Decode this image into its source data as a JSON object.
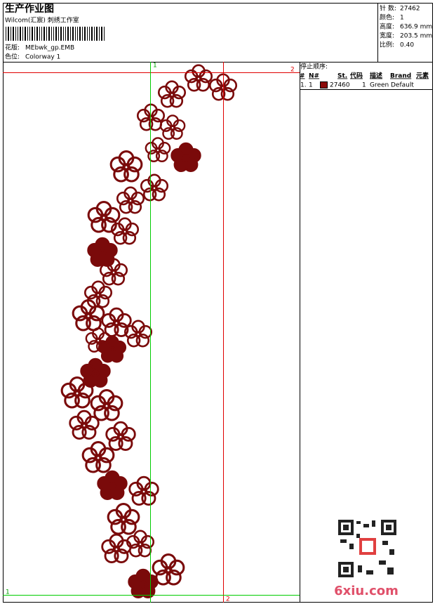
{
  "header": {
    "title": "生产作业图",
    "studio": "Wilcom(汇宸) 刺绣工作室",
    "design_label": "花版:",
    "design": "MEbwk_gp.EMB",
    "colorway_label": "色位:",
    "colorway": "Colorway 1"
  },
  "stats": [
    {
      "label": "针 数:",
      "value": "27462"
    },
    {
      "label": "颜色:",
      "value": "1"
    },
    {
      "label": "高度:",
      "value": "636.9 mm"
    },
    {
      "label": "宽度:",
      "value": "203.5 mm"
    },
    {
      "label": "比例:",
      "value": "0.40"
    }
  ],
  "stop_sequence": {
    "title": "停止顺序:",
    "columns": [
      "#",
      "N#",
      "St.",
      "代码",
      "描述",
      "Brand",
      "元素"
    ],
    "rows": [
      [
        "1.",
        "1",
        "27460",
        "1",
        "Green",
        "Default"
      ]
    ]
  },
  "guides": [
    "1",
    "2",
    "2",
    "1"
  ],
  "watermark": "6xiu.com"
}
